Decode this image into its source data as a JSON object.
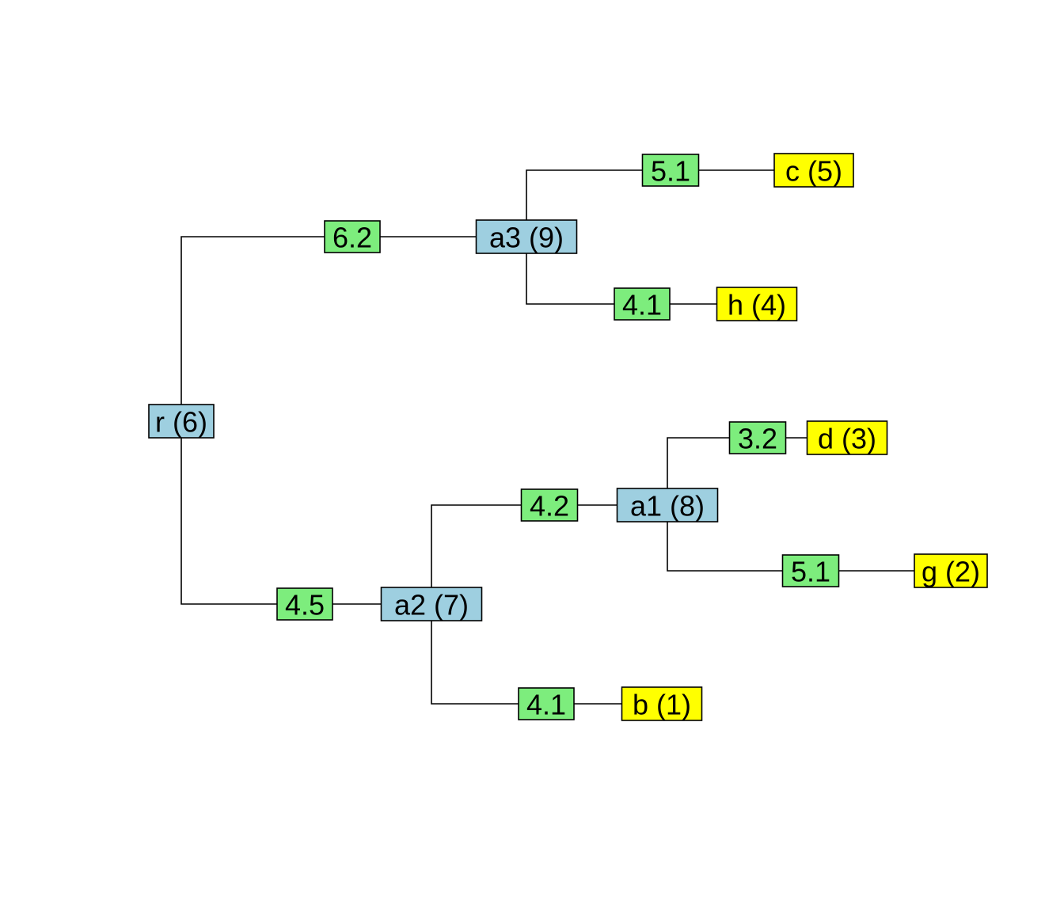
{
  "colors": {
    "internal": "#9ecfe0",
    "edge_label": "#7ded7d",
    "leaf": "#ffff00",
    "line": "#000000"
  },
  "tree": {
    "nodes": [
      {
        "id": "r",
        "label": "r (6)",
        "kind": "internal"
      },
      {
        "id": "a3",
        "label": "a3 (9)",
        "kind": "internal"
      },
      {
        "id": "a2",
        "label": "a2 (7)",
        "kind": "internal"
      },
      {
        "id": "a1",
        "label": "a1 (8)",
        "kind": "internal"
      },
      {
        "id": "c",
        "label": "c (5)",
        "kind": "leaf"
      },
      {
        "id": "h",
        "label": "h (4)",
        "kind": "leaf"
      },
      {
        "id": "d",
        "label": "d (3)",
        "kind": "leaf"
      },
      {
        "id": "g",
        "label": "g (2)",
        "kind": "leaf"
      },
      {
        "id": "b",
        "label": "b (1)",
        "kind": "leaf"
      }
    ],
    "edges": [
      {
        "id": "r-a3",
        "from": "r",
        "to": "a3",
        "label": "6.2"
      },
      {
        "id": "r-a2",
        "from": "r",
        "to": "a2",
        "label": "4.5"
      },
      {
        "id": "a3-c",
        "from": "a3",
        "to": "c",
        "label": "5.1"
      },
      {
        "id": "a3-h",
        "from": "a3",
        "to": "h",
        "label": "4.1"
      },
      {
        "id": "a2-a1",
        "from": "a2",
        "to": "a1",
        "label": "4.2"
      },
      {
        "id": "a2-b",
        "from": "a2",
        "to": "b",
        "label": "4.1"
      },
      {
        "id": "a1-d",
        "from": "a1",
        "to": "d",
        "label": "3.2"
      },
      {
        "id": "a1-g",
        "from": "a1",
        "to": "g",
        "label": "5.1"
      }
    ]
  }
}
